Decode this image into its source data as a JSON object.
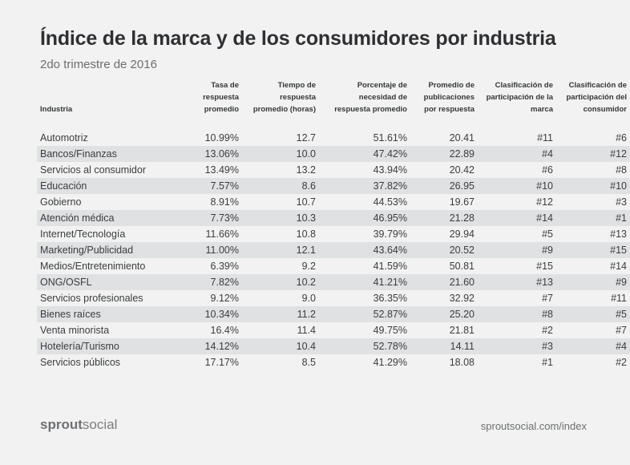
{
  "title": "Índice de la marca y de los consumidores por industria",
  "subtitle": "2do trimestre de 2016",
  "table": {
    "headers": [
      "Industria",
      "Tasa de respuesta promedio",
      "Tiempo de respuesta promedio (horas)",
      "Porcentaje de necesidad de respuesta promedio",
      "Promedio de publicaciones por respuesta",
      "Clasificación de participación de la marca",
      "Clasificación de participación del consumidor"
    ],
    "rows": [
      [
        "Automotriz",
        "10.99%",
        "12.7",
        "51.61%",
        "20.41",
        "#11",
        "#6"
      ],
      [
        "Bancos/Finanzas",
        "13.06%",
        "10.0",
        "47.42%",
        "22.89",
        "#4",
        "#12"
      ],
      [
        "Servicios al consumidor",
        "13.49%",
        "13.2",
        "43.94%",
        "20.42",
        "#6",
        "#8"
      ],
      [
        "Educación",
        "7.57%",
        "8.6",
        "37.82%",
        "26.95",
        "#10",
        "#10"
      ],
      [
        "Gobierno",
        "8.91%",
        "10.7",
        "44.53%",
        "19.67",
        "#12",
        "#3"
      ],
      [
        "Atención médica",
        "7.73%",
        "10.3",
        "46.95%",
        "21.28",
        "#14",
        "#1"
      ],
      [
        "Internet/Tecnología",
        "11.66%",
        "10.8",
        "39.79%",
        "29.94",
        "#5",
        "#13"
      ],
      [
        "Marketing/Publicidad",
        "11.00%",
        "12.1",
        "43.64%",
        "20.52",
        "#9",
        "#15"
      ],
      [
        "Medios/Entretenimiento",
        "6.39%",
        "9.2",
        "41.59%",
        "50.81",
        "#15",
        "#14"
      ],
      [
        "ONG/OSFL",
        "7.82%",
        "10.2",
        "41.21%",
        "21.60",
        "#13",
        "#9"
      ],
      [
        "Servicios profesionales",
        "9.12%",
        "9.0",
        "36.35%",
        "32.92",
        "#7",
        "#11"
      ],
      [
        "Bienes raíces",
        "10.34%",
        "11.2",
        "52.87%",
        "25.20",
        "#8",
        "#5"
      ],
      [
        "Venta minorista",
        "16.4%",
        "11.4",
        "49.75%",
        "21.81",
        "#2",
        "#7"
      ],
      [
        "Hotelería/Turismo",
        "14.12%",
        "10.4",
        "52.78%",
        "14.11",
        "#3",
        "#4"
      ],
      [
        "Servicios públicos",
        "17.17%",
        "8.5",
        "41.29%",
        "18.08",
        "#1",
        "#2"
      ]
    ]
  },
  "footer": {
    "brand_bold": "sprout",
    "brand_light": "social",
    "url": "sproutsocial.com/index"
  },
  "colors": {
    "background": "#f2f2f2",
    "row_shade": "#dfe1e3",
    "text": "#333638"
  }
}
